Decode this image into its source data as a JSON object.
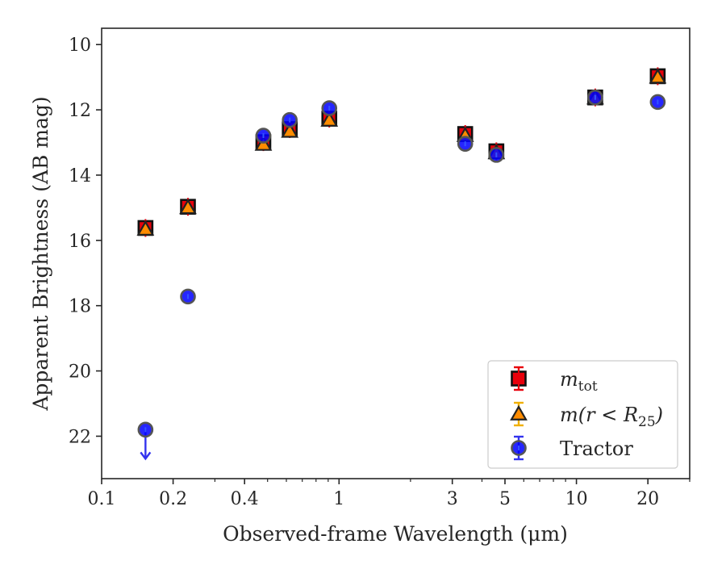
{
  "chart_data": {
    "type": "scatter",
    "xlabel": "Observed-frame Wavelength (μm)",
    "ylabel": "Apparent Brightness (AB mag)",
    "x_scale": "log",
    "xlim": [
      0.1,
      30
    ],
    "ylim": [
      23.3,
      9.5
    ],
    "y_inverted": true,
    "x_ticks": [
      {
        "value": 0.1,
        "label": "0.1"
      },
      {
        "value": 0.2,
        "label": "0.2"
      },
      {
        "value": 0.4,
        "label": "0.4"
      },
      {
        "value": 1,
        "label": "1"
      },
      {
        "value": 3,
        "label": "3"
      },
      {
        "value": 5,
        "label": "5"
      },
      {
        "value": 10,
        "label": "10"
      },
      {
        "value": 20,
        "label": "20"
      }
    ],
    "y_ticks": [
      {
        "value": 10,
        "label": "10"
      },
      {
        "value": 12,
        "label": "12"
      },
      {
        "value": 14,
        "label": "14"
      },
      {
        "value": 16,
        "label": "16"
      },
      {
        "value": 18,
        "label": "18"
      },
      {
        "value": 20,
        "label": "20"
      },
      {
        "value": 22,
        "label": "22"
      }
    ],
    "grid": false,
    "legend_position": "lower-right",
    "series": [
      {
        "name": "m_tot",
        "label_main": "m",
        "label_sub": "tot",
        "marker": "square",
        "color": "#e8000b",
        "points": [
          {
            "x": 0.153,
            "y": 15.62
          },
          {
            "x": 0.231,
            "y": 14.97
          },
          {
            "x": 0.48,
            "y": 12.99
          },
          {
            "x": 0.62,
            "y": 12.59
          },
          {
            "x": 0.91,
            "y": 12.27
          },
          {
            "x": 3.4,
            "y": 12.74
          },
          {
            "x": 4.6,
            "y": 13.27
          },
          {
            "x": 12.0,
            "y": 11.62
          },
          {
            "x": 22.0,
            "y": 10.97
          }
        ]
      },
      {
        "name": "m(r < R25)",
        "label_main": "m(r < R",
        "label_sub": "25",
        "label_close": ")",
        "marker": "triangle",
        "color": "#ff8c00",
        "err_color": "#f0b000",
        "points": [
          {
            "x": 0.153,
            "y": 15.66
          },
          {
            "x": 0.231,
            "y": 15.0
          },
          {
            "x": 0.48,
            "y": 13.06
          },
          {
            "x": 0.62,
            "y": 12.66
          },
          {
            "x": 0.91,
            "y": 12.32
          },
          {
            "x": 3.4,
            "y": 12.79
          },
          {
            "x": 4.6,
            "y": 13.32
          },
          {
            "x": 12.0,
            "y": 11.64
          },
          {
            "x": 22.0,
            "y": 11.0
          }
        ]
      },
      {
        "name": "Tractor",
        "label_main": "Tractor",
        "marker": "circle",
        "color": "#0000ff",
        "err_color": "#3333ee",
        "points": [
          {
            "x": 0.153,
            "y": 21.8,
            "upper_limit": true
          },
          {
            "x": 0.231,
            "y": 17.72
          },
          {
            "x": 0.48,
            "y": 12.79
          },
          {
            "x": 0.62,
            "y": 12.31
          },
          {
            "x": 0.91,
            "y": 11.95
          },
          {
            "x": 3.4,
            "y": 13.04
          },
          {
            "x": 4.6,
            "y": 13.38
          },
          {
            "x": 12.0,
            "y": 11.62
          },
          {
            "x": 22.0,
            "y": 11.76
          }
        ]
      }
    ]
  }
}
